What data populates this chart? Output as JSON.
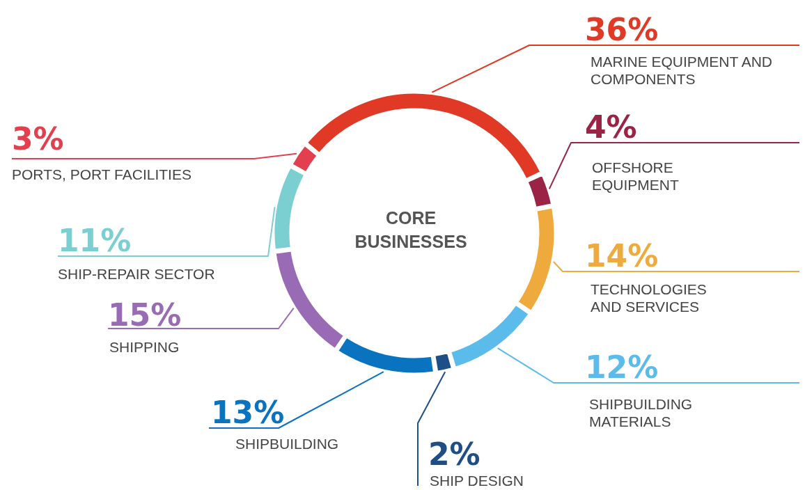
{
  "chart_data": {
    "type": "donut",
    "title": "CORE BUSINESSES",
    "categories": [
      "MARINE EQUIPMENT AND COMPONENTS",
      "OFFSHORE EQUIPMENT",
      "TECHNOLOGIES AND SERVICES",
      "SHIPBUILDING MATERIALS",
      "SHIP DESIGN",
      "SHIPBUILDING",
      "SHIPPING",
      "SHIP-REPAIR SECTOR",
      "PORTS, PORT FACILITIES"
    ],
    "values": [
      36,
      4,
      14,
      12,
      2,
      13,
      15,
      11,
      3
    ],
    "value_labels": [
      "36%",
      "4%",
      "14%",
      "12%",
      "2%",
      "13%",
      "15%",
      "11%",
      "3%"
    ],
    "colors": [
      "#e03a26",
      "#9b2346",
      "#eeaa3c",
      "#5bbcec",
      "#1f4e86",
      "#0a73bf",
      "#9a6bb5",
      "#7ccfd0",
      "#e2404e"
    ]
  }
}
